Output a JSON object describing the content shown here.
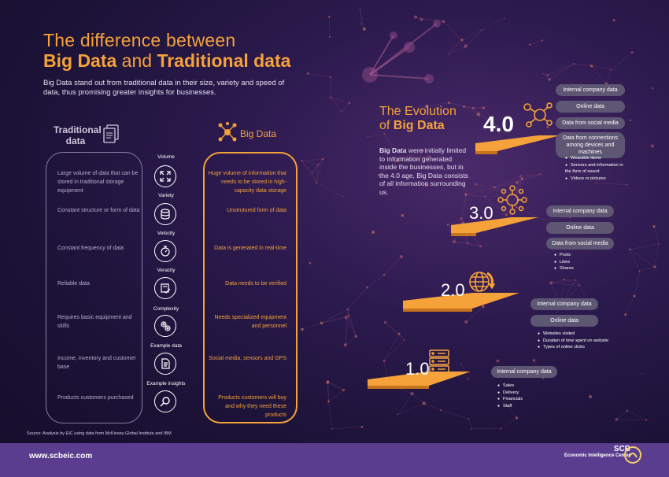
{
  "header": {
    "title_line1": "The difference between",
    "title_big": "Big Data",
    "title_and": " and ",
    "title_trad": "Traditional data",
    "intro": "Big Data stand out from traditional data in their size, variety and speed of data, thus promising greater insights for businesses."
  },
  "comparison": {
    "traditional_heading": "Traditional data",
    "big_heading": "Big Data",
    "rows": [
      {
        "category": "Volume",
        "traditional": "Large volume of data that can be stored in traditional storage equipment",
        "big": "Huge volume of information that needs to be stored in high-capacity data storage"
      },
      {
        "category": "Variety",
        "traditional": "Constant structure or form of data",
        "big": "Unstrutured form of data"
      },
      {
        "category": "Velocity",
        "traditional": "Constant frequency of data",
        "big": "Data is generated in real-time"
      },
      {
        "category": "Veracity",
        "traditional": "Reliable data",
        "big": "Data needs to be verified"
      },
      {
        "category": "Complexity",
        "traditional": "Requires basic equipment and skills",
        "big": "Needs specialized equipment and personnel"
      },
      {
        "category": "Example data",
        "traditional": "Income, inventory and customer base",
        "big": "Social media, sensors and GPS"
      },
      {
        "category": "Example insights",
        "traditional": "Products customers purchased",
        "big": "Products customers will buy and why they need these products"
      }
    ]
  },
  "evolution": {
    "title_line1": "The Evolution",
    "title_line2_prefix": "of ",
    "title_line2_bold": "Big Data",
    "desc_bold": "Big Data",
    "desc": " were initially limited to information generated inside the businesses, but in the 4.0 age, Big Data consists of all information surrounding us.",
    "stages": [
      {
        "version": "4.0",
        "pills": [
          "Internal company data",
          "Online data",
          "Data from social media",
          "Data from connections among devices and machines"
        ],
        "bullets": [
          "Wearable items",
          "Sensors and information in the form of sound",
          "Videos or pictures"
        ]
      },
      {
        "version": "3.0",
        "pills": [
          "Internal company data",
          "Online data",
          "Data from social media"
        ],
        "bullets": [
          "Posts",
          "Likes",
          "Shares"
        ]
      },
      {
        "version": "2.0",
        "pills": [
          "Internal company data",
          "Online data"
        ],
        "bullets": [
          "Websites visited",
          "Duration of time spent on website",
          "Types of online clicks"
        ]
      },
      {
        "version": "1.0",
        "pills": [
          "Internal company data"
        ],
        "bullets": [
          "Sales",
          "Delivery",
          "Financials",
          "Staff"
        ]
      }
    ]
  },
  "source": "Source: Analysis by EIC using data from McKinsey Global Institute and IBM",
  "footer": {
    "url": "www.scbeic.com",
    "brand": "SCB",
    "brand_sub": "Economic Intelligence Center"
  },
  "colors": {
    "accent": "#f5a23a",
    "background": "#1b1236",
    "footer": "#5a3d8e",
    "pill": "#5e5773"
  },
  "icons": [
    "documents-icon",
    "network-icon",
    "expand-icon",
    "database-icon",
    "stopwatch-icon",
    "check-document-icon",
    "gears-icon",
    "document-icon",
    "magnifier-icon",
    "network-4-icon",
    "network-3-icon",
    "globe-icon",
    "server-icon",
    "scb-logo-icon"
  ]
}
